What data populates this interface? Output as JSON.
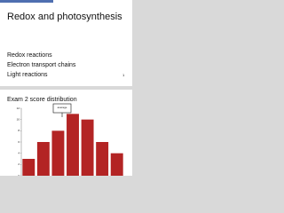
{
  "slides": [
    {
      "title": "Redox and photosynthesis",
      "bullets": [
        "Redox reactions",
        "Electron transport chains",
        "Light reactions"
      ],
      "number": "1"
    },
    {
      "title": "Exam 2 score distribution",
      "annotation": "average"
    }
  ],
  "chart_data": {
    "type": "bar",
    "categories": [
      null,
      null,
      null,
      null,
      null,
      null,
      null
    ],
    "values": [
      3,
      6,
      8,
      11,
      10,
      6,
      4
    ],
    "color": "#b32424",
    "ylim": [
      0,
      12
    ],
    "yticks": [
      0,
      2,
      4,
      6,
      8,
      10,
      12
    ],
    "grid": false
  }
}
